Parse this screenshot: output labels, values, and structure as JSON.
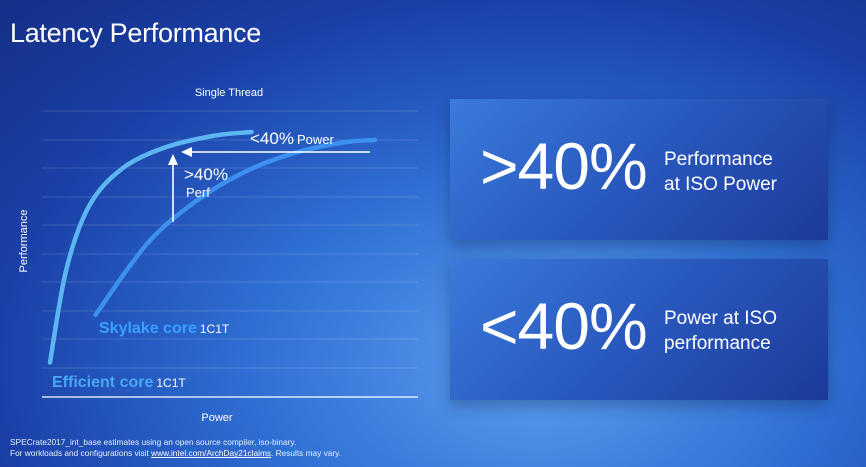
{
  "slide": {
    "title": "Latency Performance",
    "accent_color": "#1a3fa6"
  },
  "chart_data": {
    "type": "line",
    "title": "Single Thread",
    "xlabel": "Power",
    "ylabel": "Performance",
    "grid": true,
    "series": [
      {
        "name": "Efficient core",
        "suffix": "1C1T",
        "color": "#5cb6f2",
        "label_color": "#4aa8f5",
        "x": [
          0,
          0.05,
          0.12,
          0.22,
          0.35,
          0.5,
          0.62
        ],
        "y": [
          0.13,
          0.48,
          0.72,
          0.86,
          0.94,
          0.985,
          1.0
        ]
      },
      {
        "name": "Skylake core",
        "suffix": "1C1T",
        "color": "#3d8ff0",
        "label_color": "#3aa0ff",
        "x": [
          0.14,
          0.3,
          0.45,
          0.6,
          0.75,
          0.9,
          1.0
        ],
        "y": [
          0.31,
          0.58,
          0.74,
          0.85,
          0.92,
          0.96,
          0.97
        ]
      }
    ],
    "annotations": [
      {
        "big": "<40%",
        "small": "Power"
      },
      {
        "big": ">40%",
        "small": "Perf"
      }
    ]
  },
  "panels": [
    {
      "value": ">40%",
      "line1": "Performance",
      "line2": "at ISO Power"
    },
    {
      "value": "<40%",
      "line1": "Power at ISO",
      "line2": "performance"
    }
  ],
  "footnote": {
    "line1": "SPECrate2017_int_base estimates using an open source compiler, iso-binary.",
    "line2_prefix": "For workloads and configurations visit ",
    "link_text": "www.intel.com/ArchDay21claims",
    "line2_suffix": ". Results may vary."
  }
}
